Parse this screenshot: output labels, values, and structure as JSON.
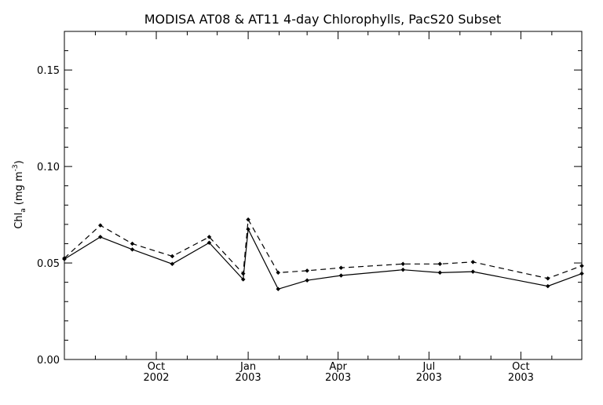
{
  "chart_data": {
    "type": "line",
    "title": "MODISA AT08 & AT11 4-day Chlorophylls, PacS20 Subset",
    "ylabel_main": "Chl",
    "ylabel_sub": "a",
    "ylabel_units": "(mg m",
    "ylabel_exp": "-3",
    "ylabel_close": ")",
    "ylim": [
      0.0,
      0.17
    ],
    "yticks": [
      {
        "value": 0.0,
        "label": "0.00"
      },
      {
        "value": 0.05,
        "label": "0.05"
      },
      {
        "value": 0.1,
        "label": "0.10"
      },
      {
        "value": 0.15,
        "label": "0.15"
      }
    ],
    "xlim": [
      "2002-07-01",
      "2003-12-01"
    ],
    "xticks": [
      {
        "date": "2002-10-01",
        "month": "Oct",
        "year": "2002"
      },
      {
        "date": "2003-01-01",
        "month": "Jan",
        "year": "2003"
      },
      {
        "date": "2003-04-01",
        "month": "Apr",
        "year": "2003"
      },
      {
        "date": "2003-07-01",
        "month": "Jul",
        "year": "2003"
      },
      {
        "date": "2003-10-01",
        "month": "Oct",
        "year": "2003"
      }
    ],
    "grid": false,
    "series": [
      {
        "style": "solid",
        "x": [
          "2002-07-01",
          "2002-08-06",
          "2002-09-07",
          "2002-10-17",
          "2002-11-23",
          "2002-12-27",
          "2003-01-01",
          "2003-01-31",
          "2003-03-01",
          "2003-04-04",
          "2003-06-05",
          "2003-07-12",
          "2003-08-14",
          "2003-10-28",
          "2003-12-01"
        ],
        "y": [
          0.052,
          0.0635,
          0.057,
          0.0495,
          0.0605,
          0.0415,
          0.0675,
          0.0365,
          0.041,
          0.0435,
          0.0465,
          0.045,
          0.0455,
          0.038,
          0.0445
        ]
      },
      {
        "style": "dashed",
        "x": [
          "2002-07-01",
          "2002-08-06",
          "2002-09-07",
          "2002-10-17",
          "2002-11-23",
          "2002-12-27",
          "2003-01-01",
          "2003-01-31",
          "2003-03-01",
          "2003-04-04",
          "2003-06-05",
          "2003-07-12",
          "2003-08-14",
          "2003-10-28",
          "2003-12-01"
        ],
        "y": [
          0.0525,
          0.0695,
          0.06,
          0.0535,
          0.0635,
          0.0445,
          0.0725,
          0.045,
          0.046,
          0.0475,
          0.0495,
          0.0495,
          0.0505,
          0.042,
          0.0485
        ]
      }
    ]
  },
  "colors": {
    "line": "#000000",
    "background": "#ffffff"
  }
}
